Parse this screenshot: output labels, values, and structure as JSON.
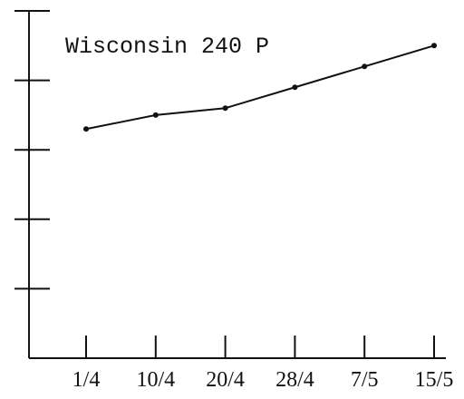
{
  "chart_data": {
    "type": "line",
    "annotation": "Wisconsin 240 P",
    "categories": [
      "1/4",
      "10/4",
      "20/4",
      "28/4",
      "7/5",
      "15/5"
    ],
    "values": [
      3.3,
      3.5,
      3.6,
      3.9,
      4.2,
      4.5
    ],
    "color": "#111111",
    "ylim": [
      0,
      5
    ],
    "yticks": [
      1,
      2,
      3,
      4,
      5
    ]
  }
}
